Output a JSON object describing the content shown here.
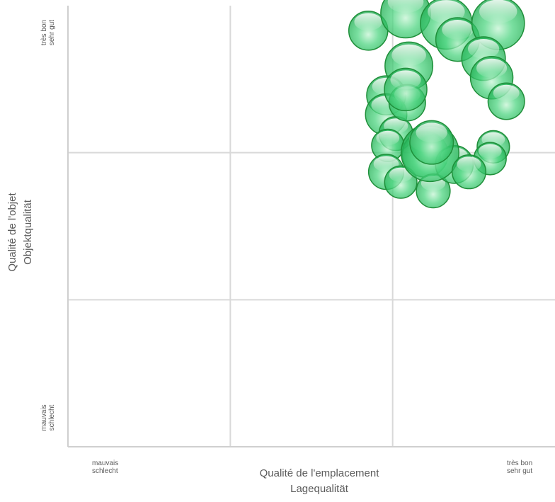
{
  "chart_data": {
    "type": "scatter",
    "variant": "bubble",
    "grid": "3x3",
    "xlabel": [
      "Qualité de l'emplacement",
      "Lagequalität"
    ],
    "ylabel": [
      "Qualité de l'objet",
      "Objektqualität"
    ],
    "x_range": [
      0,
      3
    ],
    "y_range": [
      0,
      3
    ],
    "x_ticks": {
      "low": [
        "mauvais",
        "schlecht"
      ],
      "high": [
        "très bon",
        "sehr gut"
      ]
    },
    "y_ticks": {
      "low": [
        "mauvais",
        "schlecht"
      ],
      "high": [
        "très bon",
        "sehr gut"
      ]
    },
    "bubble_color": "#2ecc71",
    "bubble_edge": "#1f8f3a",
    "points": [
      {
        "x": 2.1,
        "y": 2.59,
        "size": 1.2
      },
      {
        "x": 1.85,
        "y": 2.83,
        "size": 0.8
      },
      {
        "x": 2.08,
        "y": 2.95,
        "size": 1.3
      },
      {
        "x": 2.33,
        "y": 2.88,
        "size": 1.4
      },
      {
        "x": 2.4,
        "y": 2.77,
        "size": 1.0
      },
      {
        "x": 1.96,
        "y": 2.39,
        "size": 0.8
      },
      {
        "x": 1.96,
        "y": 2.26,
        "size": 0.9
      },
      {
        "x": 2.02,
        "y": 2.13,
        "size": 0.6
      },
      {
        "x": 1.97,
        "y": 2.05,
        "size": 0.55
      },
      {
        "x": 1.96,
        "y": 1.87,
        "size": 0.65
      },
      {
        "x": 2.05,
        "y": 1.8,
        "size": 0.55
      },
      {
        "x": 2.2,
        "y": 1.99,
        "size": 1.1
      },
      {
        "x": 2.09,
        "y": 2.34,
        "size": 0.7
      },
      {
        "x": 2.25,
        "y": 1.74,
        "size": 0.6
      },
      {
        "x": 2.38,
        "y": 1.92,
        "size": 0.75
      },
      {
        "x": 2.62,
        "y": 2.04,
        "size": 0.55
      },
      {
        "x": 2.65,
        "y": 2.88,
        "size": 1.45
      },
      {
        "x": 2.56,
        "y": 2.64,
        "size": 1.0
      },
      {
        "x": 2.61,
        "y": 2.51,
        "size": 0.95
      },
      {
        "x": 2.7,
        "y": 2.35,
        "size": 0.7
      },
      {
        "x": 2.08,
        "y": 2.43,
        "size": 0.95
      },
      {
        "x": 2.23,
        "y": 2.0,
        "size": 1.75
      },
      {
        "x": 2.24,
        "y": 2.07,
        "size": 1.0
      },
      {
        "x": 2.6,
        "y": 1.96,
        "size": 0.55
      },
      {
        "x": 2.47,
        "y": 1.87,
        "size": 0.6
      }
    ]
  }
}
